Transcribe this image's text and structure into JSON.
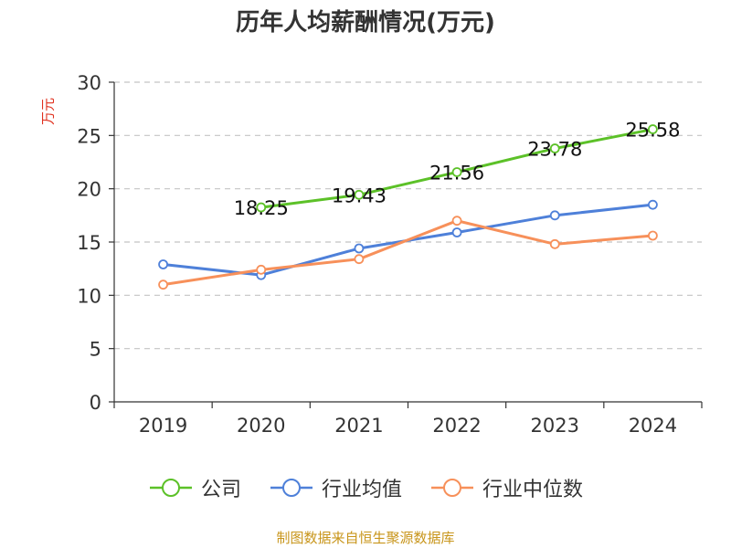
{
  "chart_data": {
    "type": "line",
    "title": "历年人均薪酬情况(万元)",
    "ylabel": "万元",
    "xlabel": "",
    "ylim": [
      0,
      30
    ],
    "yticks": [
      0,
      5,
      10,
      15,
      20,
      25,
      30
    ],
    "categories": [
      "2019",
      "2020",
      "2021",
      "2022",
      "2023",
      "2024"
    ],
    "grid": true,
    "legend_position": "bottom",
    "series": [
      {
        "name": "公司",
        "color": "#5cc128",
        "values": [
          null,
          18.25,
          19.43,
          21.56,
          23.78,
          25.58
        ],
        "labels": [
          "",
          "18.25",
          "19.43",
          "21.56",
          "23.78",
          "25.58"
        ]
      },
      {
        "name": "行业均值",
        "color": "#4e80d9",
        "values": [
          12.9,
          11.9,
          14.4,
          15.9,
          17.5,
          18.5
        ]
      },
      {
        "name": "行业中位数",
        "color": "#f7905a",
        "values": [
          11.0,
          12.4,
          13.4,
          17.0,
          14.8,
          15.6
        ]
      }
    ]
  },
  "source": "制图数据来自恒生聚源数据库"
}
